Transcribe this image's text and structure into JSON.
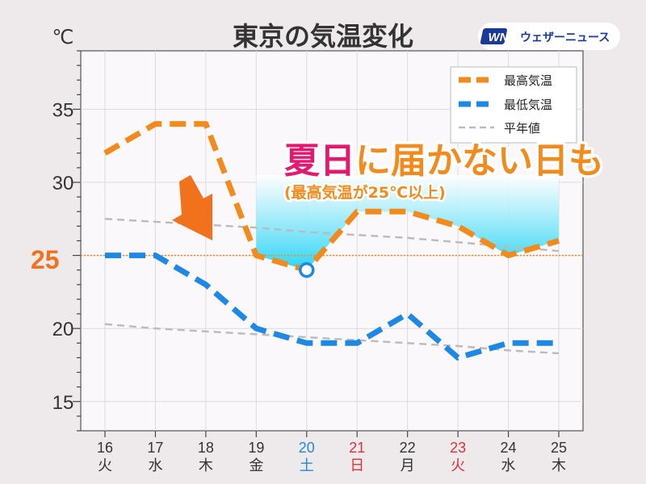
{
  "title": "東京の気温変化",
  "unit_label": "℃",
  "brand": {
    "logo_text": "WN",
    "name": "ウェザーニュース"
  },
  "highlight": {
    "main": "夏日に届かない日も",
    "main_part1": "夏日",
    "main_part2": "に届かない日も",
    "sub": "(最高気温が25℃以上)",
    "threshold_label": "25"
  },
  "colors": {
    "high": "#f28a1c",
    "low": "#1e88e5",
    "normal": "#bbbbbb",
    "accent_pink": "#e3186f",
    "weekday": "#333333",
    "saturday": "#1e88e5",
    "holiday": "#e0303d"
  },
  "chart_data": {
    "type": "line",
    "title": "東京の気温変化",
    "ylabel": "℃",
    "ylim": [
      13,
      39
    ],
    "yticks": [
      15,
      20,
      25,
      30,
      35
    ],
    "grid": true,
    "legend_position": "top-right",
    "threshold": 25,
    "x": [
      {
        "date": "16",
        "day": "火",
        "type": "weekday"
      },
      {
        "date": "17",
        "day": "水",
        "type": "weekday"
      },
      {
        "date": "18",
        "day": "木",
        "type": "weekday"
      },
      {
        "date": "19",
        "day": "金",
        "type": "weekday"
      },
      {
        "date": "20",
        "day": "土",
        "type": "saturday"
      },
      {
        "date": "21",
        "day": "日",
        "type": "holiday"
      },
      {
        "date": "22",
        "day": "月",
        "type": "weekday"
      },
      {
        "date": "23",
        "day": "火",
        "type": "holiday"
      },
      {
        "date": "24",
        "day": "水",
        "type": "weekday"
      },
      {
        "date": "25",
        "day": "木",
        "type": "weekday"
      }
    ],
    "series": [
      {
        "name": "最高気温",
        "values": [
          32,
          34,
          34,
          25,
          24,
          28,
          28,
          27,
          25,
          26
        ]
      },
      {
        "name": "最低気温",
        "values": [
          25,
          25,
          23,
          20,
          19,
          19,
          21,
          18,
          19,
          19
        ]
      },
      {
        "name": "平年値",
        "values": [
          27.5,
          27.3,
          27.1,
          26.9,
          26.6,
          26.4,
          26.2,
          25.9,
          25.6,
          25.3
        ]
      },
      {
        "name": "",
        "values": [
          20.3,
          20.0,
          19.8,
          19.6,
          19.4,
          19.2,
          19.0,
          18.8,
          18.5,
          18.3
        ]
      }
    ]
  }
}
